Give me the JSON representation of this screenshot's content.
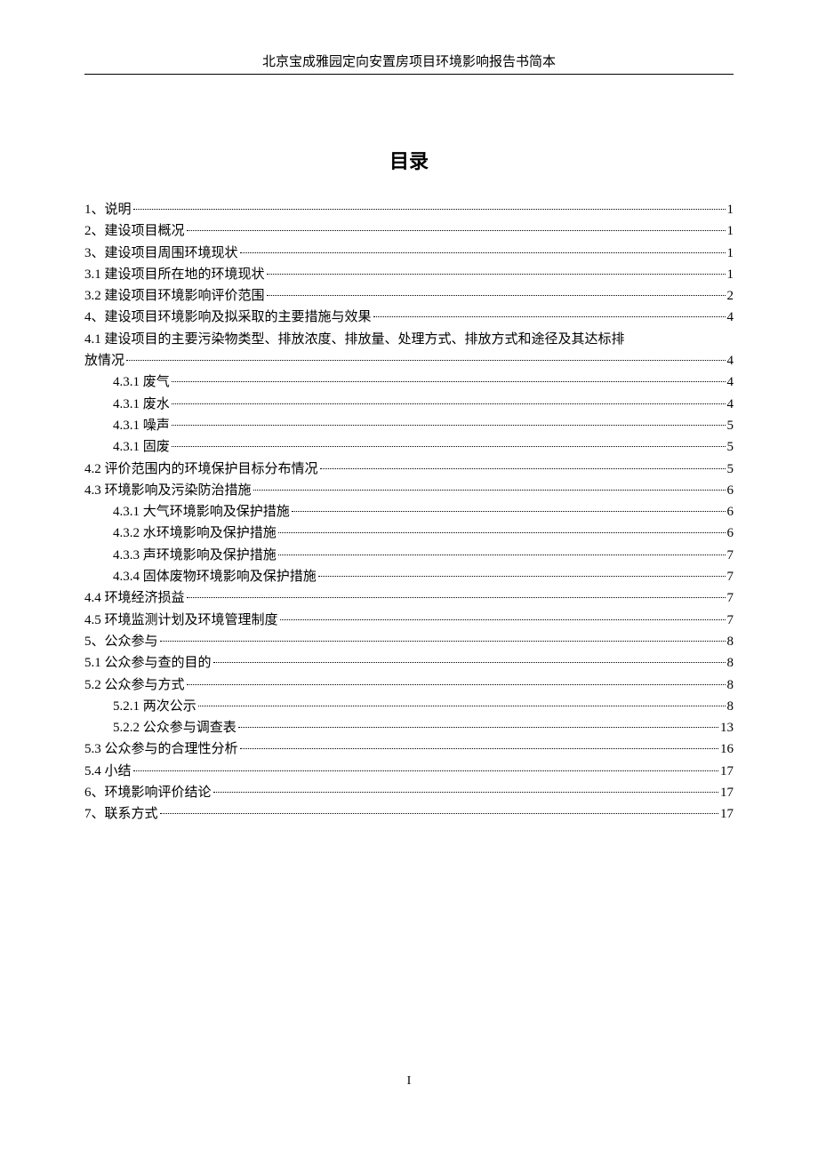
{
  "header": "北京宝成雅园定向安置房项目环境影响报告书简本",
  "tocTitle": "目录",
  "pageNumber": "I",
  "entries": [
    {
      "label": "1、说明",
      "page": "1",
      "indent": 0
    },
    {
      "label": "2、建设项目概况",
      "page": "1",
      "indent": 0
    },
    {
      "label": "3、建设项目周围环境现状",
      "page": "1",
      "indent": 0
    },
    {
      "label": "3.1 建设项目所在地的环境现状",
      "page": "1",
      "indent": 0
    },
    {
      "label": "3.2 建设项目环境影响评价范围",
      "page": "2",
      "indent": 0
    },
    {
      "label": "4、建设项目环境影响及拟采取的主要措施与效果",
      "page": "4",
      "indent": 0
    },
    {
      "label": "4.1 建设项目的主要污染物类型、排放浓度、排放量、处理方式、排放方式和途径及其达标排",
      "wrapLabel": "放情况",
      "page": "4",
      "indent": 0
    },
    {
      "label": "4.3.1 废气",
      "page": "4",
      "indent": 1
    },
    {
      "label": "4.3.1 废水",
      "page": "4",
      "indent": 1
    },
    {
      "label": "4.3.1 噪声",
      "page": "5",
      "indent": 1
    },
    {
      "label": "4.3.1 固废",
      "page": "5",
      "indent": 1
    },
    {
      "label": "4.2 评价范围内的环境保护目标分布情况",
      "page": "5",
      "indent": 0
    },
    {
      "label": "4.3 环境影响及污染防治措施",
      "page": "6",
      "indent": 0
    },
    {
      "label": "4.3.1 大气环境影响及保护措施",
      "page": "6",
      "indent": 1
    },
    {
      "label": "4.3.2 水环境影响及保护措施",
      "page": "6",
      "indent": 1
    },
    {
      "label": "4.3.3 声环境影响及保护措施",
      "page": "7",
      "indent": 1
    },
    {
      "label": "4.3.4 固体废物环境影响及保护措施",
      "page": "7",
      "indent": 1
    },
    {
      "label": "4.4 环境经济损益",
      "page": "7",
      "indent": 0
    },
    {
      "label": "4.5 环境监测计划及环境管理制度",
      "page": "7",
      "indent": 0
    },
    {
      "label": "5、公众参与",
      "page": "8",
      "indent": 0
    },
    {
      "label": "5.1 公众参与查的目的",
      "page": "8",
      "indent": 0
    },
    {
      "label": "5.2 公众参与方式",
      "page": "8",
      "indent": 0
    },
    {
      "label": "5.2.1 两次公示",
      "page": "8",
      "indent": 1
    },
    {
      "label": "5.2.2 公众参与调查表",
      "page": "13",
      "indent": 1
    },
    {
      "label": "5.3 公众参与的合理性分析",
      "page": "16",
      "indent": 0
    },
    {
      "label": "5.4 小结",
      "page": "17",
      "indent": 0
    },
    {
      "label": "6、环境影响评价结论",
      "page": "17",
      "indent": 0
    },
    {
      "label": "7、联系方式",
      "page": "17",
      "indent": 0
    }
  ]
}
